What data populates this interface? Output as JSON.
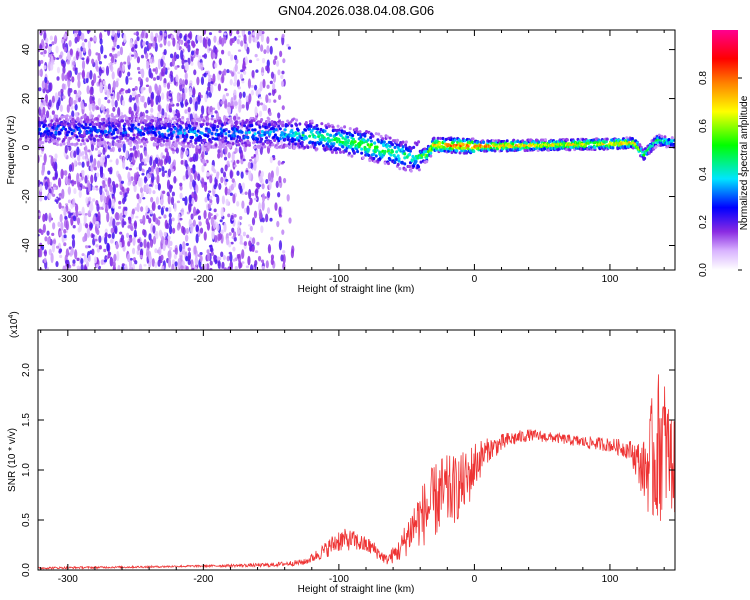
{
  "title": "GN04.2026.038.04.08.G06",
  "colors": {
    "snr_line": "#ee3333",
    "background": "#ffffff",
    "axis": "#000000"
  },
  "chart_data": [
    {
      "type": "heatmap",
      "xlabel": "Height of straight line (km)",
      "ylabel": "Frequency (Hz)",
      "xlim": [
        -322,
        148
      ],
      "ylim": [
        -50,
        48
      ],
      "xticks": [
        -300,
        -200,
        -100,
        0,
        100
      ],
      "yticks": [
        -40,
        -20,
        0,
        20,
        40
      ],
      "colorbar": {
        "label": "Normalized spectral amplitude",
        "range": [
          0,
          1
        ],
        "ticks": [
          0.0,
          0.2,
          0.4,
          0.6,
          0.8
        ],
        "colormap": "rainbow-white-to-magenta"
      },
      "ridge": {
        "x": [
          -322,
          -250,
          -200,
          -150,
          -120,
          -100,
          -80,
          -60,
          -45,
          -35,
          -30,
          -20,
          0,
          50,
          100,
          118,
          125,
          135,
          148
        ],
        "y": [
          7,
          7,
          6,
          6,
          5,
          3,
          1,
          -2,
          -4,
          -3,
          1,
          1,
          0.5,
          1,
          1.5,
          2,
          -3,
          3,
          2
        ],
        "peak_amplitude": [
          0.3,
          0.3,
          0.35,
          0.35,
          0.45,
          0.5,
          0.55,
          0.5,
          0.45,
          0.6,
          0.75,
          0.8,
          0.85,
          0.7,
          0.7,
          0.75,
          0.5,
          0.5,
          0.45
        ]
      }
    },
    {
      "type": "line",
      "xlabel": "Height of straight line (km)",
      "ylabel": "SNR (10 * v/v)",
      "yscale_label": "(x10",
      "yscale_exp": "4",
      "yscale_close": ")",
      "xlim": [
        -322,
        148
      ],
      "ylim": [
        0,
        2.4
      ],
      "xticks": [
        -300,
        -200,
        -100,
        0,
        100
      ],
      "yticks": [
        0.0,
        0.5,
        1.0,
        1.5,
        2.0
      ],
      "tick_labels_x": [
        "-300",
        "-200",
        "-100",
        "0",
        "100"
      ],
      "tick_labels_y": [
        "0.0",
        "0.5",
        "1.0",
        "1.5",
        "2.0"
      ],
      "tick_labels_cb": [
        "0.0",
        "0.2",
        "0.4",
        "0.6",
        "0.8"
      ],
      "tick_labels_y1": [
        "-40",
        "-20",
        "0",
        "20",
        "40"
      ],
      "envelope": {
        "x": [
          -322,
          -250,
          -200,
          -150,
          -125,
          -110,
          -100,
          -90,
          -75,
          -65,
          -55,
          -45,
          -35,
          -25,
          -15,
          -5,
          0,
          10,
          25,
          40,
          60,
          80,
          100,
          115,
          125,
          132,
          138,
          142,
          148
        ],
        "mean": [
          0.02,
          0.03,
          0.04,
          0.05,
          0.08,
          0.2,
          0.3,
          0.3,
          0.22,
          0.1,
          0.2,
          0.45,
          0.6,
          0.75,
          0.8,
          0.9,
          1.05,
          1.2,
          1.3,
          1.35,
          1.32,
          1.28,
          1.25,
          1.2,
          1.0,
          1.1,
          1.3,
          1.2,
          1.0
        ],
        "noise": [
          0.01,
          0.01,
          0.01,
          0.02,
          0.03,
          0.08,
          0.12,
          0.1,
          0.08,
          0.05,
          0.12,
          0.25,
          0.35,
          0.4,
          0.35,
          0.3,
          0.25,
          0.12,
          0.08,
          0.06,
          0.05,
          0.06,
          0.07,
          0.1,
          0.3,
          0.7,
          0.8,
          0.6,
          0.45
        ]
      }
    }
  ]
}
